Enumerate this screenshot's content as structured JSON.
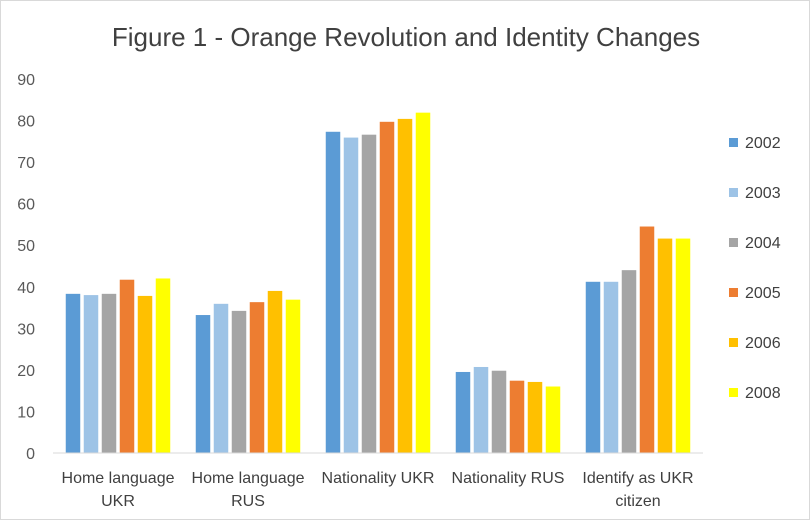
{
  "chart_data": {
    "type": "bar",
    "title": "Figure 1 - Orange Revolution and Identity Changes",
    "xlabel": "",
    "ylabel": "",
    "ylim": [
      0,
      90
    ],
    "yticks": [
      0,
      10,
      20,
      30,
      40,
      50,
      60,
      70,
      80,
      90
    ],
    "grid": false,
    "legend_position": "right",
    "categories": [
      [
        "Home language",
        "UKR"
      ],
      [
        "Home language",
        "RUS"
      ],
      [
        "Nationality UKR"
      ],
      [
        "Nationality RUS"
      ],
      [
        "Identify as UKR",
        "citizen"
      ]
    ],
    "series": [
      {
        "name": "2002",
        "color": "#5b9bd5",
        "values": [
          38.3,
          33.2,
          77.3,
          19.5,
          41.2
        ]
      },
      {
        "name": "2003",
        "color": "#9dc3e6",
        "values": [
          38.0,
          35.9,
          75.9,
          20.7,
          41.2
        ]
      },
      {
        "name": "2004",
        "color": "#a5a5a5",
        "values": [
          38.3,
          34.2,
          76.6,
          19.8,
          44.0
        ]
      },
      {
        "name": "2005",
        "color": "#ed7d31",
        "values": [
          41.7,
          36.3,
          79.7,
          17.4,
          54.5
        ]
      },
      {
        "name": "2006",
        "color": "#ffc000",
        "values": [
          37.8,
          39.0,
          80.4,
          17.1,
          51.6
        ]
      },
      {
        "name": "2008",
        "color": "#ffff00",
        "values": [
          42.0,
          36.9,
          81.9,
          16.0,
          51.6
        ]
      }
    ]
  }
}
